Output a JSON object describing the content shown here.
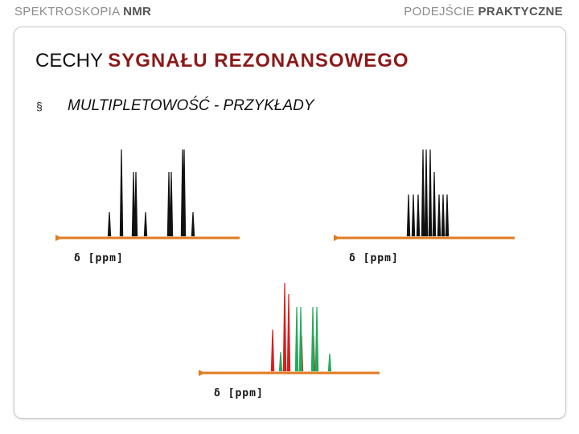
{
  "header": {
    "left_regular": "SPEKTROSKOPIA ",
    "left_bold": "NMR",
    "right_regular": "PODEJŚCIE ",
    "right_bold": "PRAKTYCZNE"
  },
  "title": {
    "plain": "CECHY ",
    "accent": "SYGNAŁU REZONANSOWEGO"
  },
  "bullet": {
    "marker": "§",
    "text": "MULTIPLETOWOŚĆ - PRZYKŁADY"
  },
  "colors": {
    "axis": "#e07b22",
    "peak_black": "#111111",
    "peak_red": "#dd1c1c",
    "peak_green": "#22aa5a",
    "title_accent": "#8b1a1a"
  },
  "spectra": [
    {
      "axis_label": "δ [ppm]"
    },
    {
      "axis_label": "δ [ppm]"
    },
    {
      "axis_label": "δ [ppm]"
    }
  ]
}
